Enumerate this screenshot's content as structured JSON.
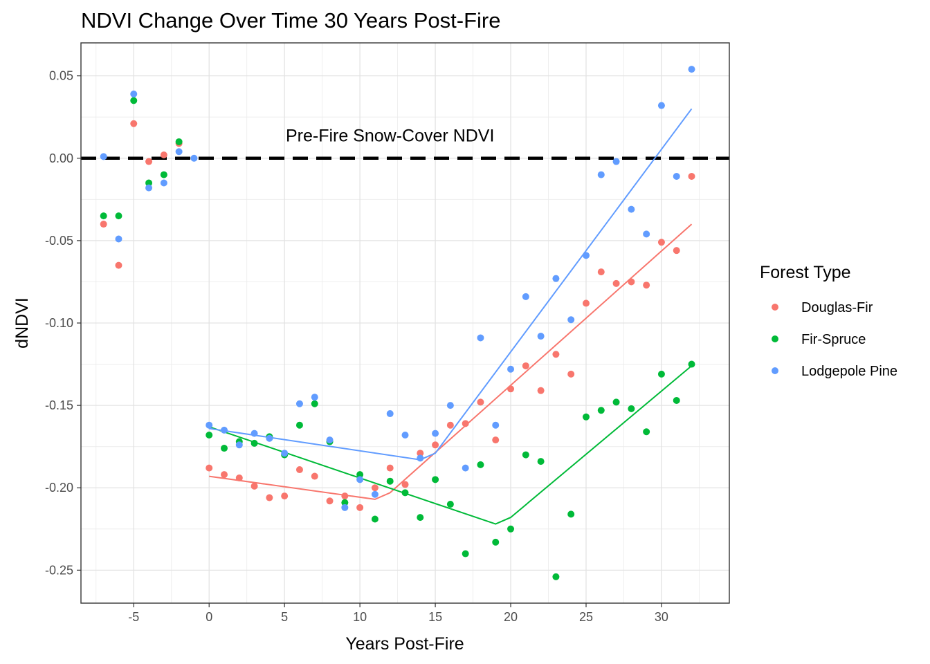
{
  "chart_data": {
    "type": "scatter",
    "title": "NDVI Change Over Time 30 Years Post-Fire",
    "xlabel": "Years Post-Fire",
    "ylabel": "dNDVI",
    "xlim": [
      -8.5,
      34.5
    ],
    "ylim": [
      -0.27,
      0.07
    ],
    "x_ticks": [
      -5,
      0,
      5,
      10,
      15,
      20,
      25,
      30
    ],
    "x_tick_labels": [
      "-5",
      "0",
      "5",
      "10",
      "15",
      "20",
      "25",
      "30"
    ],
    "y_ticks": [
      0.05,
      0.0,
      -0.05,
      -0.1,
      -0.15,
      -0.2,
      -0.25
    ],
    "y_tick_labels": [
      "0.05",
      "0.00",
      "-0.05",
      "-0.10",
      "-0.15",
      "-0.20",
      "-0.25"
    ],
    "grid": true,
    "legend": {
      "title": "Forest Type",
      "position": "right"
    },
    "reference_line": {
      "y": 0.0,
      "style": "dashed",
      "color": "#000000"
    },
    "annotation": {
      "text": "Pre-Fire Snow-Cover NDVI",
      "x": 12,
      "y": 0.014
    },
    "series": [
      {
        "name": "Douglas-Fir",
        "color": "#F8766D",
        "points": [
          [
            -7,
            -0.04
          ],
          [
            -6,
            -0.065
          ],
          [
            -5,
            0.021
          ],
          [
            -4,
            -0.002
          ],
          [
            -3,
            0.002
          ],
          [
            -2,
            0.009
          ],
          [
            0,
            -0.188
          ],
          [
            1,
            -0.192
          ],
          [
            2,
            -0.194
          ],
          [
            3,
            -0.199
          ],
          [
            4,
            -0.206
          ],
          [
            5,
            -0.205
          ],
          [
            6,
            -0.189
          ],
          [
            7,
            -0.193
          ],
          [
            8,
            -0.208
          ],
          [
            9,
            -0.205
          ],
          [
            10,
            -0.212
          ],
          [
            11,
            -0.2
          ],
          [
            12,
            -0.188
          ],
          [
            13,
            -0.198
          ],
          [
            14,
            -0.179
          ],
          [
            15,
            -0.174
          ],
          [
            16,
            -0.162
          ],
          [
            17,
            -0.161
          ],
          [
            18,
            -0.148
          ],
          [
            19,
            -0.171
          ],
          [
            20,
            -0.14
          ],
          [
            21,
            -0.126
          ],
          [
            22,
            -0.141
          ],
          [
            23,
            -0.119
          ],
          [
            24,
            -0.131
          ],
          [
            25,
            -0.088
          ],
          [
            26,
            -0.069
          ],
          [
            27,
            -0.076
          ],
          [
            28,
            -0.075
          ],
          [
            29,
            -0.077
          ],
          [
            30,
            -0.051
          ],
          [
            31,
            -0.056
          ],
          [
            32,
            -0.011
          ]
        ],
        "fit": [
          [
            0,
            -0.193
          ],
          [
            11,
            -0.207
          ],
          [
            12,
            -0.203
          ],
          [
            32,
            -0.04
          ]
        ]
      },
      {
        "name": "Fir-Spruce",
        "color": "#00BA38",
        "points": [
          [
            -7,
            -0.035
          ],
          [
            -6,
            -0.035
          ],
          [
            -5,
            0.035
          ],
          [
            -4,
            -0.015
          ],
          [
            -3,
            -0.01
          ],
          [
            -2,
            0.01
          ],
          [
            0,
            -0.168
          ],
          [
            1,
            -0.176
          ],
          [
            2,
            -0.172
          ],
          [
            3,
            -0.173
          ],
          [
            4,
            -0.169
          ],
          [
            5,
            -0.18
          ],
          [
            6,
            -0.162
          ],
          [
            7,
            -0.149
          ],
          [
            8,
            -0.172
          ],
          [
            9,
            -0.209
          ],
          [
            10,
            -0.192
          ],
          [
            11,
            -0.219
          ],
          [
            12,
            -0.196
          ],
          [
            13,
            -0.203
          ],
          [
            14,
            -0.218
          ],
          [
            15,
            -0.195
          ],
          [
            16,
            -0.21
          ],
          [
            17,
            -0.24
          ],
          [
            18,
            -0.186
          ],
          [
            19,
            -0.233
          ],
          [
            20,
            -0.225
          ],
          [
            21,
            -0.18
          ],
          [
            22,
            -0.184
          ],
          [
            23,
            -0.254
          ],
          [
            24,
            -0.216
          ],
          [
            25,
            -0.157
          ],
          [
            26,
            -0.153
          ],
          [
            27,
            -0.148
          ],
          [
            28,
            -0.152
          ],
          [
            29,
            -0.166
          ],
          [
            30,
            -0.131
          ],
          [
            31,
            -0.147
          ],
          [
            32,
            -0.125
          ]
        ],
        "fit": [
          [
            0,
            -0.163
          ],
          [
            19,
            -0.222
          ],
          [
            20,
            -0.218
          ],
          [
            32,
            -0.126
          ]
        ]
      },
      {
        "name": "Lodgepole Pine",
        "color": "#619CFF",
        "points": [
          [
            -7,
            0.001
          ],
          [
            -6,
            -0.049
          ],
          [
            -5,
            0.039
          ],
          [
            -4,
            -0.018
          ],
          [
            -3,
            -0.015
          ],
          [
            -2,
            0.004
          ],
          [
            -1,
            0.0
          ],
          [
            0,
            -0.162
          ],
          [
            1,
            -0.165
          ],
          [
            2,
            -0.174
          ],
          [
            3,
            -0.167
          ],
          [
            4,
            -0.17
          ],
          [
            5,
            -0.179
          ],
          [
            6,
            -0.149
          ],
          [
            7,
            -0.145
          ],
          [
            8,
            -0.171
          ],
          [
            9,
            -0.212
          ],
          [
            10,
            -0.195
          ],
          [
            11,
            -0.204
          ],
          [
            12,
            -0.155
          ],
          [
            13,
            -0.168
          ],
          [
            14,
            -0.182
          ],
          [
            15,
            -0.167
          ],
          [
            16,
            -0.15
          ],
          [
            17,
            -0.188
          ],
          [
            18,
            -0.109
          ],
          [
            19,
            -0.162
          ],
          [
            20,
            -0.128
          ],
          [
            21,
            -0.084
          ],
          [
            22,
            -0.108
          ],
          [
            23,
            -0.073
          ],
          [
            24,
            -0.098
          ],
          [
            25,
            -0.059
          ],
          [
            26,
            -0.01
          ],
          [
            27,
            -0.002
          ],
          [
            28,
            -0.031
          ],
          [
            29,
            -0.046
          ],
          [
            30,
            0.032
          ],
          [
            31,
            -0.011
          ],
          [
            32,
            0.054
          ]
        ],
        "fit": [
          [
            0,
            -0.164
          ],
          [
            14,
            -0.183
          ],
          [
            15,
            -0.179
          ],
          [
            32,
            0.03
          ]
        ]
      }
    ]
  }
}
